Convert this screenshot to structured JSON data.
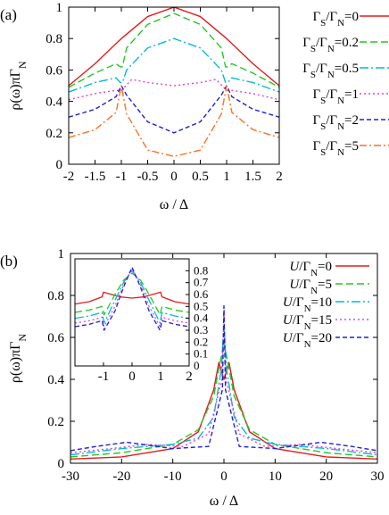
{
  "figure": {
    "panel_labels": [
      "(a)",
      "(b)"
    ]
  },
  "chart_data": [
    {
      "type": "line",
      "panel": "(a)",
      "xlabel": "ω / Δ",
      "ylabel": "ρ(ω)πΓN",
      "xlim": [
        -2,
        2
      ],
      "ylim": [
        0,
        1
      ],
      "xticks": [
        "-2",
        "-1.5",
        "-1",
        "-0.5",
        "0",
        "0.5",
        "1",
        "1.5",
        "2"
      ],
      "yticks": [
        "0",
        "0.2",
        "0.4",
        "0.6",
        "0.8",
        "1"
      ],
      "legend_position": "right",
      "series": [
        {
          "name": "ΓS/ΓN=0",
          "label_main": "Γ",
          "label_parts": [
            "S",
            "/Γ",
            "N",
            "=0"
          ],
          "color": "#e41a1c",
          "dash": "",
          "x": [
            -2,
            -1.5,
            -1,
            -0.5,
            0,
            0.5,
            1,
            1.5,
            2
          ],
          "values": [
            0.5,
            0.64,
            0.8,
            0.94,
            1.0,
            0.94,
            0.8,
            0.64,
            0.5
          ]
        },
        {
          "name": "ΓS/ΓN=0.2",
          "label_main": "Γ",
          "label_parts": [
            "S",
            "/Γ",
            "N",
            "=0.2"
          ],
          "color": "#22c922",
          "dash": "8,4",
          "x": [
            -2,
            -1.5,
            -1.1,
            -1.02,
            -0.98,
            -0.9,
            -0.5,
            0,
            0.5,
            0.9,
            0.98,
            1.02,
            1.1,
            1.5,
            2
          ],
          "values": [
            0.49,
            0.58,
            0.64,
            0.62,
            0.62,
            0.74,
            0.89,
            0.96,
            0.89,
            0.74,
            0.62,
            0.62,
            0.64,
            0.58,
            0.49
          ]
        },
        {
          "name": "ΓS/ΓN=0.5",
          "label_main": "Γ",
          "label_parts": [
            "S",
            "/Γ",
            "N",
            "=0.5"
          ],
          "color": "#00bcd4",
          "dash": "10,3,2,3",
          "x": [
            -2,
            -1.5,
            -1.1,
            -1.02,
            -0.98,
            -0.9,
            -0.5,
            0,
            0.5,
            0.9,
            0.98,
            1.02,
            1.1,
            1.5,
            2
          ],
          "values": [
            0.46,
            0.52,
            0.55,
            0.52,
            0.52,
            0.6,
            0.74,
            0.8,
            0.74,
            0.6,
            0.52,
            0.52,
            0.55,
            0.52,
            0.46
          ]
        },
        {
          "name": "ΓS/ΓN=1",
          "label_main": "Γ",
          "label_parts": [
            "S",
            "/Γ",
            "N",
            "=1"
          ],
          "color": "#e040e0",
          "dash": "2,3",
          "x": [
            -2,
            -1.5,
            -1.1,
            -1.0,
            -0.8,
            -0.5,
            0,
            0.5,
            0.8,
            1.0,
            1.1,
            1.5,
            2
          ],
          "values": [
            0.41,
            0.45,
            0.47,
            0.47,
            0.54,
            0.52,
            0.5,
            0.52,
            0.54,
            0.47,
            0.47,
            0.45,
            0.41
          ]
        },
        {
          "name": "ΓS/ΓN=2",
          "label_main": "Γ",
          "label_parts": [
            "S",
            "/Γ",
            "N",
            "=2"
          ],
          "color": "#2020d0",
          "dash": "5,3",
          "x": [
            -2,
            -1.5,
            -1.1,
            -1.0,
            -0.9,
            -0.5,
            0,
            0.5,
            0.9,
            1.0,
            1.1,
            1.5,
            2
          ],
          "values": [
            0.3,
            0.35,
            0.43,
            0.5,
            0.44,
            0.27,
            0.2,
            0.27,
            0.44,
            0.5,
            0.43,
            0.35,
            0.3
          ]
        },
        {
          "name": "ΓS/ΓN=5",
          "label_main": "Γ",
          "label_parts": [
            "S",
            "/Γ",
            "N",
            "=5"
          ],
          "color": "#ff6f20",
          "dash": "8,3,2,3",
          "x": [
            -2,
            -1.5,
            -1.1,
            -1.0,
            -0.9,
            -0.5,
            0,
            0.5,
            0.9,
            1.0,
            1.1,
            1.5,
            2
          ],
          "values": [
            0.17,
            0.22,
            0.33,
            0.5,
            0.32,
            0.09,
            0.05,
            0.09,
            0.32,
            0.5,
            0.33,
            0.22,
            0.17
          ]
        }
      ]
    },
    {
      "type": "line",
      "panel": "(b)",
      "xlabel": "ω / Δ",
      "ylabel": "ρ(ω)πΓN",
      "xlim": [
        -30,
        30
      ],
      "ylim": [
        0,
        1
      ],
      "xticks": [
        "-30",
        "-20",
        "-10",
        "0",
        "10",
        "20",
        "30"
      ],
      "yticks": [
        "0",
        "0.2",
        "0.4",
        "0.6",
        "0.8",
        "1"
      ],
      "legend_position": "top-right",
      "series": [
        {
          "name": "U/ΓN=0",
          "label_main": "U/Γ",
          "label_parts": [
            "N",
            "=0"
          ],
          "color": "#e41a1c",
          "dash": "",
          "x": [
            -30,
            -20,
            -10,
            -5,
            -2,
            -1,
            0,
            1,
            2,
            5,
            10,
            20,
            30
          ],
          "values": [
            0.02,
            0.03,
            0.07,
            0.15,
            0.35,
            0.48,
            0.4,
            0.48,
            0.35,
            0.15,
            0.07,
            0.03,
            0.02
          ]
        },
        {
          "name": "U/ΓN=5",
          "label_main": "U/Γ",
          "label_parts": [
            "N",
            "=5"
          ],
          "color": "#22c922",
          "dash": "8,4",
          "x": [
            -30,
            -20,
            -10,
            -5,
            -2,
            -0.6,
            0,
            0.6,
            2,
            5,
            10,
            20,
            30
          ],
          "values": [
            0.03,
            0.05,
            0.09,
            0.16,
            0.32,
            0.5,
            0.58,
            0.5,
            0.32,
            0.16,
            0.09,
            0.05,
            0.03
          ]
        },
        {
          "name": "U/ΓN=10",
          "label_main": "U/Γ",
          "label_parts": [
            "N",
            "=10"
          ],
          "color": "#00bcd4",
          "dash": "10,3,2,3",
          "x": [
            -30,
            -20,
            -10,
            -5,
            -2,
            -0.5,
            0,
            0.5,
            2,
            5,
            10,
            20,
            30
          ],
          "values": [
            0.04,
            0.07,
            0.09,
            0.12,
            0.22,
            0.45,
            0.66,
            0.45,
            0.22,
            0.12,
            0.09,
            0.07,
            0.04
          ]
        },
        {
          "name": "U/ΓN=15",
          "label_main": "U/Γ",
          "label_parts": [
            "N",
            "=15"
          ],
          "color": "#e040e0",
          "dash": "2,3",
          "x": [
            -30,
            -22,
            -15,
            -8,
            -3,
            -0.4,
            0,
            0.4,
            3,
            8,
            15,
            22,
            30
          ],
          "values": [
            0.05,
            0.07,
            0.09,
            0.08,
            0.14,
            0.4,
            0.71,
            0.4,
            0.14,
            0.08,
            0.09,
            0.07,
            0.05
          ]
        },
        {
          "name": "U/ΓN=20",
          "label_main": "U/Γ",
          "label_parts": [
            "N",
            "=20"
          ],
          "color": "#2020d0",
          "dash": "5,3",
          "x": [
            -30,
            -25,
            -19,
            -10,
            -3,
            -0.3,
            0,
            0.3,
            3,
            10,
            19,
            25,
            30
          ],
          "values": [
            0.06,
            0.08,
            0.1,
            0.07,
            0.08,
            0.35,
            0.75,
            0.35,
            0.08,
            0.07,
            0.1,
            0.08,
            0.06
          ]
        }
      ],
      "inset": {
        "xlim": [
          -2,
          2
        ],
        "ylim": [
          0,
          0.9
        ],
        "xticks": [
          "-1",
          "0",
          "1",
          "2"
        ],
        "yticks": [
          "0",
          "0.1",
          "0.2",
          "0.3",
          "0.4",
          "0.5",
          "0.6",
          "0.7",
          "0.8"
        ],
        "series": [
          {
            "name": "U/ΓN=0",
            "color": "#e41a1c",
            "dash": "",
            "x": [
              -2,
              -1.5,
              -1.05,
              -1.0,
              -0.7,
              -0.4,
              0,
              0.4,
              0.7,
              1.0,
              1.05,
              1.5,
              2
            ],
            "values": [
              0.52,
              0.54,
              0.58,
              0.62,
              0.6,
              0.58,
              0.57,
              0.58,
              0.6,
              0.62,
              0.58,
              0.54,
              0.52
            ]
          },
          {
            "name": "U/ΓN=5",
            "color": "#22c922",
            "dash": "8,4",
            "x": [
              -2,
              -1.5,
              -1.05,
              -0.98,
              -0.6,
              -0.3,
              0,
              0.3,
              0.6,
              0.98,
              1.05,
              1.5,
              2
            ],
            "values": [
              0.45,
              0.47,
              0.5,
              0.43,
              0.6,
              0.72,
              0.78,
              0.72,
              0.6,
              0.43,
              0.5,
              0.47,
              0.45
            ]
          },
          {
            "name": "U/ΓN=10",
            "color": "#00bcd4",
            "dash": "10,3,2,3",
            "x": [
              -2,
              -1.5,
              -1.05,
              -0.98,
              -0.6,
              -0.3,
              0,
              0.3,
              0.6,
              0.98,
              1.05,
              1.5,
              2
            ],
            "values": [
              0.4,
              0.42,
              0.45,
              0.36,
              0.55,
              0.7,
              0.8,
              0.7,
              0.55,
              0.36,
              0.45,
              0.42,
              0.4
            ]
          },
          {
            "name": "U/ΓN=15",
            "color": "#e040e0",
            "dash": "2,3",
            "x": [
              -2,
              -1.5,
              -1.05,
              -0.98,
              -0.6,
              -0.3,
              0,
              0.3,
              0.6,
              0.98,
              1.05,
              1.5,
              2
            ],
            "values": [
              0.36,
              0.38,
              0.41,
              0.33,
              0.5,
              0.68,
              0.82,
              0.68,
              0.5,
              0.33,
              0.41,
              0.38,
              0.36
            ]
          },
          {
            "name": "U/ΓN=20",
            "color": "#2020d0",
            "dash": "5,3",
            "x": [
              -2,
              -1.5,
              -1.05,
              -0.98,
              -0.6,
              -0.3,
              0,
              0.3,
              0.6,
              0.98,
              1.05,
              1.5,
              2
            ],
            "values": [
              0.33,
              0.35,
              0.38,
              0.3,
              0.46,
              0.66,
              0.83,
              0.66,
              0.46,
              0.3,
              0.38,
              0.35,
              0.33
            ]
          }
        ]
      }
    }
  ]
}
